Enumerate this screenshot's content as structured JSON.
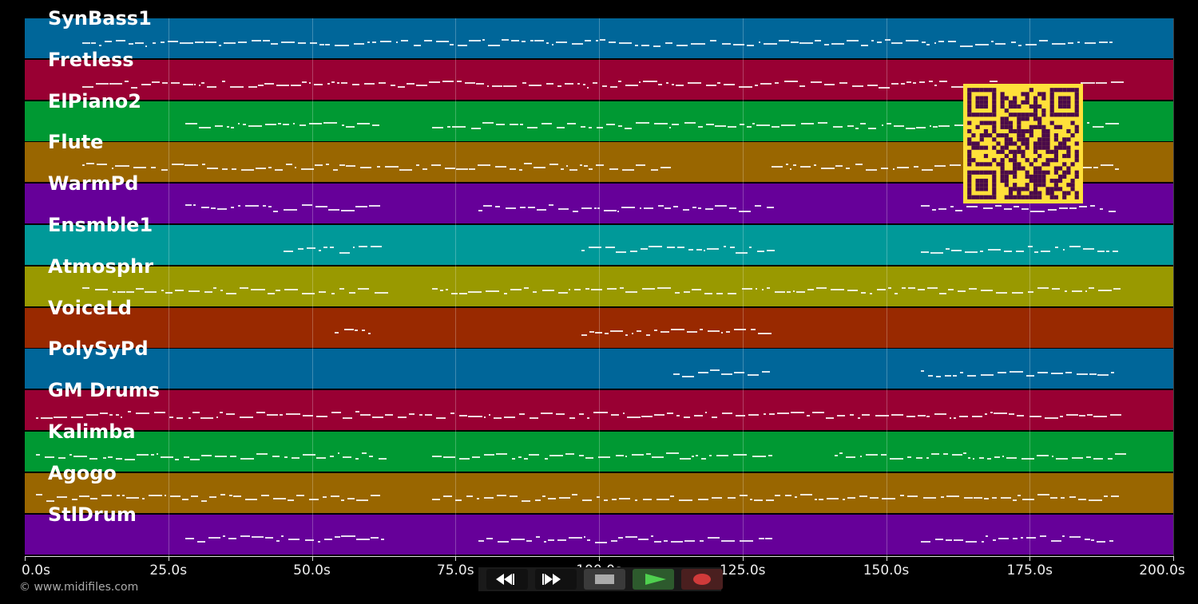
{
  "tracks": [
    {
      "name": "SynBass1",
      "color": "#006699"
    },
    {
      "name": "Fretless",
      "color": "#990033"
    },
    {
      "name": "ElPiano2",
      "color": "#009933"
    },
    {
      "name": "Flute",
      "color": "#996600"
    },
    {
      "name": "WarmPd",
      "color": "#660099"
    },
    {
      "name": "Ensmble1",
      "color": "#009999"
    },
    {
      "name": "Atmosphr",
      "color": "#999900"
    },
    {
      "name": "VoiceLd",
      "color": "#992900"
    },
    {
      "name": "PolySyPd",
      "color": "#006699"
    },
    {
      "name": "GM Drums",
      "color": "#990033"
    },
    {
      "name": "Kalimba",
      "color": "#009933"
    },
    {
      "name": "Agogo",
      "color": "#996600"
    },
    {
      "name": "StlDrum",
      "color": "#660099"
    }
  ],
  "timeline": {
    "ticks": [
      "0.0s",
      "25.0s",
      "50.0s",
      "75.0s",
      "100.0s",
      "125.0s",
      "150.0s",
      "175.0s",
      "200.0s"
    ]
  },
  "copyright": "© www.midifiles.com",
  "transport": {
    "rewind_icon": "rewind-icon",
    "forward_icon": "fast-forward-icon",
    "stop_icon": "stop-icon",
    "play_icon": "play-icon",
    "record_icon": "record-icon"
  },
  "qr_icon": "qr-code-icon"
}
